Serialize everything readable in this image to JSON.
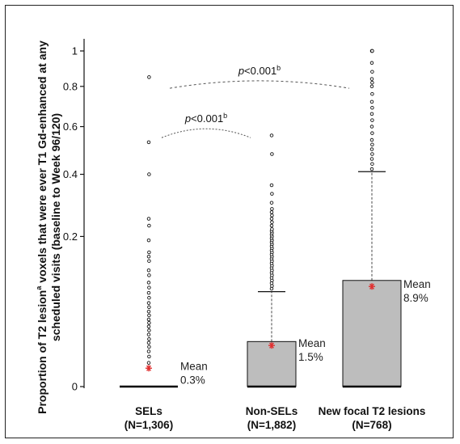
{
  "chart_data": {
    "type": "box",
    "ylabel": "Proportion of T2 lesionᵃ voxels that were ever T1 Gd-enhanced at any scheduled visits (baseline to Week 96/120)",
    "ylabel_main": "Proportion of T2 lesion",
    "ylabel_sup": "a",
    "ylabel_rest": " voxels that were ever T1 Gd-enhanced at any scheduled visits (baseline to Week 96/120)",
    "y_scale": "sqrt",
    "ylim": [
      0,
      1
    ],
    "y_ticks": [
      {
        "value": 0,
        "label": "0"
      },
      {
        "value": 0.2,
        "label": "0.2"
      },
      {
        "value": 0.4,
        "label": "0.4"
      },
      {
        "value": 0.6,
        "label": "0.6"
      },
      {
        "value": 0.8,
        "label": "0.8"
      },
      {
        "value": 1,
        "label": "1"
      }
    ],
    "groups": [
      {
        "name": "SELs",
        "n_label": "(N=1,306)",
        "q1": 0,
        "median": 0,
        "q3": 0,
        "whisker_high": 0,
        "mean": 0.003,
        "mean_label": "Mean",
        "mean_value_label": "0.3%",
        "outliers": [
          0.005,
          0.008,
          0.011,
          0.014,
          0.017,
          0.02,
          0.024,
          0.028,
          0.032,
          0.036,
          0.04,
          0.045,
          0.05,
          0.056,
          0.062,
          0.07,
          0.078,
          0.087,
          0.096,
          0.11,
          0.12,
          0.14,
          0.15,
          0.16,
          0.19,
          0.23,
          0.25,
          0.4,
          0.53,
          0.85
        ],
        "color": "#bdbdbd"
      },
      {
        "name": "Non-SELs",
        "n_label": "(N=1,882)",
        "q1": 0,
        "median": 0,
        "q3": 0.018,
        "whisker_high": 0.08,
        "mean": 0.015,
        "mean_label": "Mean",
        "mean_value_label": "1.5%",
        "outliers": [
          0.085,
          0.09,
          0.095,
          0.1,
          0.105,
          0.11,
          0.115,
          0.12,
          0.125,
          0.13,
          0.135,
          0.14,
          0.145,
          0.15,
          0.155,
          0.16,
          0.165,
          0.17,
          0.175,
          0.18,
          0.185,
          0.19,
          0.195,
          0.2,
          0.205,
          0.21,
          0.215,
          0.22,
          0.23,
          0.24,
          0.25,
          0.26,
          0.27,
          0.28,
          0.3,
          0.33,
          0.36,
          0.48,
          0.56
        ],
        "color": "#bdbdbd"
      },
      {
        "name": "New focal T2 lesions",
        "n_label": "(N=768)",
        "q1": 0,
        "median": 0,
        "q3": 0.1,
        "whisker_high": 0.41,
        "mean": 0.089,
        "mean_label": "Mean",
        "mean_value_label": "8.9%",
        "outliers": [
          0.42,
          0.44,
          0.46,
          0.48,
          0.5,
          0.52,
          0.54,
          0.57,
          0.6,
          0.63,
          0.66,
          0.69,
          0.72,
          0.76,
          0.8,
          0.82,
          0.84,
          0.88,
          0.93,
          1.0,
          1.0,
          1.0
        ],
        "color": "#bdbdbd"
      }
    ],
    "comparisons": [
      {
        "from": "SELs",
        "to": "Non-SELs",
        "label": "p<0.001",
        "sup": "b",
        "peak": 0.59
      },
      {
        "from": "SELs",
        "to": "New focal T2 lesions",
        "label": "p<0.001",
        "sup": "b",
        "peak": 0.83
      }
    ],
    "colors": {
      "box": "#bdbdbd",
      "mean_marker": "#e03030",
      "axis": "#111111"
    }
  }
}
